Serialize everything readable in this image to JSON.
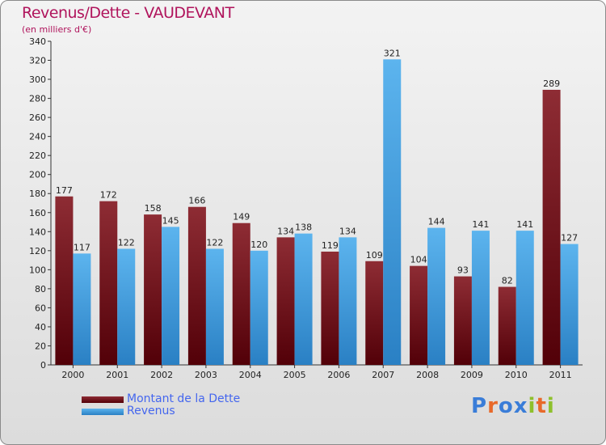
{
  "chart_data": {
    "type": "bar",
    "title": "Revenus/Dette - VAUDEVANT",
    "subtitle": "(en milliers d'€)",
    "xlabel": "",
    "ylabel": "",
    "ylim": [
      0,
      340
    ],
    "yticks": [
      0,
      20,
      40,
      60,
      80,
      100,
      120,
      140,
      160,
      180,
      200,
      220,
      240,
      260,
      280,
      300,
      320,
      340
    ],
    "grid": false,
    "legend_position": "bottom-left",
    "categories": [
      "2000",
      "2001",
      "2002",
      "2003",
      "2004",
      "2005",
      "2006",
      "2007",
      "2008",
      "2009",
      "2010",
      "2011"
    ],
    "series": [
      {
        "name": "Montant de la Dette",
        "color": "#7a1420",
        "values": [
          177,
          172,
          158,
          166,
          149,
          134,
          119,
          109,
          104,
          93,
          82,
          289
        ]
      },
      {
        "name": "Revenus",
        "color": "#3d9be0",
        "values": [
          117,
          122,
          145,
          122,
          120,
          138,
          134,
          321,
          144,
          141,
          141,
          127
        ]
      }
    ]
  },
  "logo": {
    "text": "Proxiti",
    "letter_colors": [
      "#3a7dd8",
      "#e8692a",
      "#3a7dd8",
      "#3a7dd8",
      "#8ec02c",
      "#e8692a",
      "#8ec02c"
    ]
  }
}
